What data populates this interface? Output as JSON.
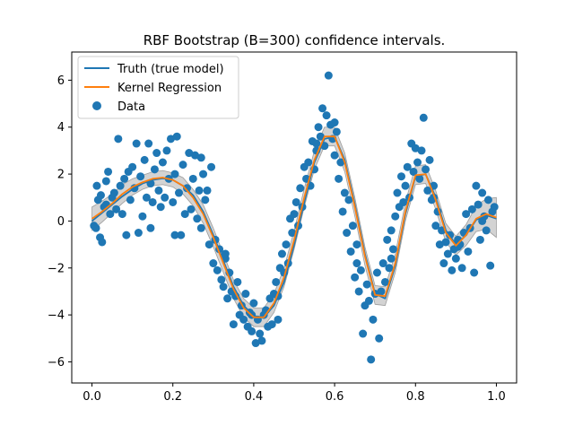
{
  "chart_data": {
    "type": "line",
    "title": "RBF Bootstrap (B=300) confidence intervals.",
    "xlabel": "",
    "ylabel": "",
    "xlim": [
      -0.05,
      1.05
    ],
    "ylim": [
      -6.9,
      7.2
    ],
    "xticks": [
      0.0,
      0.2,
      0.4,
      0.6,
      0.8,
      1.0
    ],
    "xtick_labels": [
      "0.0",
      "0.2",
      "0.4",
      "0.6",
      "0.8",
      "1.0"
    ],
    "yticks": [
      -6,
      -4,
      -2,
      0,
      2,
      4,
      6
    ],
    "ytick_labels": [
      "−6",
      "−4",
      "−2",
      "0",
      "2",
      "4",
      "6"
    ],
    "grid": false,
    "legend_position": "top-left",
    "legend": [
      {
        "label": "Truth (true model)",
        "kind": "line",
        "color": "#1f77b4"
      },
      {
        "label": "Kernel Regression",
        "kind": "line",
        "color": "#ff7f0e"
      },
      {
        "label": "Data",
        "kind": "scatter",
        "color": "#1f77b4"
      }
    ],
    "colors": {
      "truth": "#1f77b4",
      "kernel": "#ff7f0e",
      "data": "#1f77b4",
      "band": "#808080"
    },
    "series": [
      {
        "name": "Truth (true model)",
        "kind": "line",
        "x": [
          0.0,
          0.025,
          0.05,
          0.075,
          0.1,
          0.125,
          0.15,
          0.175,
          0.2,
          0.225,
          0.25,
          0.275,
          0.3,
          0.325,
          0.35,
          0.375,
          0.4,
          0.425,
          0.45,
          0.475,
          0.5,
          0.525,
          0.55,
          0.575,
          0.6,
          0.625,
          0.65,
          0.675,
          0.7,
          0.725,
          0.75,
          0.775,
          0.8,
          0.825,
          0.85,
          0.875,
          0.9,
          0.925,
          0.95,
          0.975,
          1.0
        ],
        "y": [
          0.0,
          0.35,
          0.7,
          1.05,
          1.35,
          1.6,
          1.75,
          1.82,
          1.75,
          1.5,
          1.1,
          0.4,
          -0.6,
          -1.7,
          -2.8,
          -3.6,
          -4.05,
          -4.1,
          -3.6,
          -2.6,
          -1.0,
          0.8,
          2.5,
          3.5,
          3.6,
          2.6,
          0.7,
          -1.4,
          -3.1,
          -3.3,
          -1.9,
          0.3,
          1.9,
          2.0,
          1.0,
          -0.4,
          -1.0,
          -0.6,
          0.05,
          0.25,
          0.1
        ]
      },
      {
        "name": "Kernel Regression",
        "kind": "line",
        "x": [
          0.0,
          0.025,
          0.05,
          0.075,
          0.1,
          0.125,
          0.15,
          0.175,
          0.2,
          0.225,
          0.25,
          0.275,
          0.3,
          0.325,
          0.35,
          0.375,
          0.4,
          0.425,
          0.45,
          0.475,
          0.5,
          0.525,
          0.55,
          0.575,
          0.6,
          0.625,
          0.65,
          0.675,
          0.7,
          0.725,
          0.75,
          0.775,
          0.8,
          0.825,
          0.85,
          0.875,
          0.9,
          0.925,
          0.95,
          0.975,
          1.0
        ],
        "y": [
          0.1,
          0.4,
          0.75,
          1.15,
          1.45,
          1.65,
          1.8,
          1.85,
          1.75,
          1.5,
          1.0,
          0.3,
          -0.7,
          -1.8,
          -2.9,
          -3.7,
          -4.1,
          -4.1,
          -3.5,
          -2.4,
          -0.8,
          1.0,
          2.6,
          3.6,
          3.6,
          2.5,
          0.6,
          -1.5,
          -3.15,
          -3.2,
          -1.8,
          0.4,
          1.95,
          2.0,
          0.9,
          -0.5,
          -1.05,
          -0.6,
          0.1,
          0.3,
          0.15
        ]
      }
    ],
    "band": {
      "name": "Confidence interval",
      "x": [
        0.0,
        0.025,
        0.05,
        0.075,
        0.1,
        0.125,
        0.15,
        0.175,
        0.2,
        0.225,
        0.25,
        0.275,
        0.3,
        0.325,
        0.35,
        0.375,
        0.4,
        0.425,
        0.45,
        0.475,
        0.5,
        0.525,
        0.55,
        0.575,
        0.6,
        0.625,
        0.65,
        0.675,
        0.7,
        0.725,
        0.75,
        0.775,
        0.8,
        0.825,
        0.85,
        0.875,
        0.9,
        0.925,
        0.95,
        0.975,
        1.0
      ],
      "lower": [
        -0.4,
        -0.05,
        0.35,
        0.75,
        1.1,
        1.35,
        1.5,
        1.55,
        1.45,
        1.15,
        0.65,
        -0.1,
        -1.1,
        -2.2,
        -3.3,
        -4.1,
        -4.5,
        -4.5,
        -3.9,
        -2.8,
        -1.2,
        0.6,
        2.2,
        3.2,
        3.2,
        2.1,
        0.2,
        -1.9,
        -3.55,
        -3.6,
        -2.2,
        0.0,
        1.55,
        1.6,
        0.5,
        -0.9,
        -1.45,
        -1.05,
        -0.45,
        -0.35,
        -0.7
      ],
      "upper": [
        0.6,
        0.85,
        1.15,
        1.55,
        1.8,
        1.95,
        2.1,
        2.15,
        2.05,
        1.85,
        1.35,
        0.7,
        -0.3,
        -1.4,
        -2.5,
        -3.3,
        -3.7,
        -3.7,
        -3.1,
        -2.0,
        -0.4,
        1.4,
        3.0,
        4.0,
        4.0,
        2.9,
        1.0,
        -1.1,
        -2.75,
        -2.8,
        -1.4,
        0.8,
        2.35,
        2.4,
        1.3,
        -0.1,
        -0.65,
        -0.15,
        0.65,
        0.95,
        1.0
      ]
    },
    "scatter": {
      "name": "Data",
      "points": [
        [
          0.005,
          -0.2
        ],
        [
          0.01,
          -0.3
        ],
        [
          0.012,
          1.5
        ],
        [
          0.015,
          0.9
        ],
        [
          0.02,
          -0.7
        ],
        [
          0.022,
          1.1
        ],
        [
          0.025,
          -0.9
        ],
        [
          0.03,
          0.6
        ],
        [
          0.035,
          1.7
        ],
        [
          0.04,
          2.1
        ],
        [
          0.045,
          0.3
        ],
        [
          0.05,
          1.0
        ],
        [
          0.055,
          1.2
        ],
        [
          0.06,
          0.5
        ],
        [
          0.065,
          3.5
        ],
        [
          0.07,
          1.5
        ],
        [
          0.075,
          0.3
        ],
        [
          0.08,
          1.8
        ],
        [
          0.085,
          -0.6
        ],
        [
          0.09,
          2.1
        ],
        [
          0.095,
          0.9
        ],
        [
          0.1,
          2.3
        ],
        [
          0.105,
          1.4
        ],
        [
          0.11,
          3.3
        ],
        [
          0.115,
          -0.5
        ],
        [
          0.12,
          1.9
        ],
        [
          0.125,
          0.2
        ],
        [
          0.13,
          2.6
        ],
        [
          0.135,
          1.0
        ],
        [
          0.14,
          3.3
        ],
        [
          0.145,
          1.6
        ],
        [
          0.15,
          0.8
        ],
        [
          0.155,
          2.2
        ],
        [
          0.16,
          2.9
        ],
        [
          0.165,
          1.3
        ],
        [
          0.17,
          0.6
        ],
        [
          0.175,
          2.5
        ],
        [
          0.18,
          1.0
        ],
        [
          0.185,
          3.0
        ],
        [
          0.19,
          1.8
        ],
        [
          0.195,
          3.5
        ],
        [
          0.2,
          0.8
        ],
        [
          0.205,
          2.0
        ],
        [
          0.21,
          3.6
        ],
        [
          0.215,
          1.2
        ],
        [
          0.22,
          -0.6
        ],
        [
          0.225,
          2.4
        ],
        [
          0.23,
          0.3
        ],
        [
          0.235,
          1.4
        ],
        [
          0.24,
          2.9
        ],
        [
          0.245,
          0.5
        ],
        [
          0.25,
          1.8
        ],
        [
          0.255,
          2.8
        ],
        [
          0.26,
          0.1
        ],
        [
          0.265,
          1.3
        ],
        [
          0.27,
          -0.3
        ],
        [
          0.275,
          2.0
        ],
        [
          0.28,
          0.9
        ],
        [
          0.285,
          1.3
        ],
        [
          0.29,
          -1.0
        ],
        [
          0.295,
          2.3
        ],
        [
          0.3,
          -1.8
        ],
        [
          0.305,
          -0.8
        ],
        [
          0.31,
          -2.1
        ],
        [
          0.315,
          -1.2
        ],
        [
          0.32,
          -2.5
        ],
        [
          0.325,
          -2.8
        ],
        [
          0.33,
          -1.6
        ],
        [
          0.335,
          -3.3
        ],
        [
          0.34,
          -2.2
        ],
        [
          0.345,
          -3.0
        ],
        [
          0.35,
          -4.4
        ],
        [
          0.355,
          -3.2
        ],
        [
          0.36,
          -2.6
        ],
        [
          0.365,
          -4.0
        ],
        [
          0.37,
          -3.6
        ],
        [
          0.375,
          -4.2
        ],
        [
          0.38,
          -3.1
        ],
        [
          0.385,
          -4.5
        ],
        [
          0.39,
          -3.9
        ],
        [
          0.395,
          -4.7
        ],
        [
          0.4,
          -3.5
        ],
        [
          0.405,
          -5.2
        ],
        [
          0.41,
          -4.2
        ],
        [
          0.415,
          -4.8
        ],
        [
          0.42,
          -5.1
        ],
        [
          0.425,
          -4.0
        ],
        [
          0.43,
          -3.8
        ],
        [
          0.435,
          -4.5
        ],
        [
          0.44,
          -3.3
        ],
        [
          0.445,
          -4.4
        ],
        [
          0.45,
          -3.1
        ],
        [
          0.455,
          -2.6
        ],
        [
          0.46,
          -3.2
        ],
        [
          0.465,
          -2.0
        ],
        [
          0.47,
          -1.4
        ],
        [
          0.475,
          -2.2
        ],
        [
          0.48,
          -1.0
        ],
        [
          0.485,
          -1.8
        ],
        [
          0.49,
          0.1
        ],
        [
          0.495,
          -0.5
        ],
        [
          0.5,
          0.3
        ],
        [
          0.505,
          0.8
        ],
        [
          0.51,
          -0.2
        ],
        [
          0.515,
          1.4
        ],
        [
          0.52,
          0.6
        ],
        [
          0.525,
          2.3
        ],
        [
          0.53,
          1.8
        ],
        [
          0.535,
          2.5
        ],
        [
          0.54,
          1.5
        ],
        [
          0.545,
          3.4
        ],
        [
          0.55,
          2.2
        ],
        [
          0.555,
          3.0
        ],
        [
          0.56,
          4.0
        ],
        [
          0.565,
          3.6
        ],
        [
          0.57,
          4.8
        ],
        [
          0.575,
          3.2
        ],
        [
          0.58,
          4.5
        ],
        [
          0.585,
          6.2
        ],
        [
          0.59,
          4.1
        ],
        [
          0.595,
          3.5
        ],
        [
          0.6,
          2.8
        ],
        [
          0.605,
          3.8
        ],
        [
          0.61,
          1.8
        ],
        [
          0.615,
          2.5
        ],
        [
          0.62,
          0.4
        ],
        [
          0.625,
          1.2
        ],
        [
          0.63,
          -0.5
        ],
        [
          0.635,
          0.9
        ],
        [
          0.64,
          -1.3
        ],
        [
          0.645,
          -0.2
        ],
        [
          0.65,
          -2.4
        ],
        [
          0.655,
          -1.0
        ],
        [
          0.66,
          -3.0
        ],
        [
          0.665,
          -2.1
        ],
        [
          0.67,
          -4.8
        ],
        [
          0.675,
          -3.6
        ],
        [
          0.68,
          -2.7
        ],
        [
          0.685,
          -3.4
        ],
        [
          0.69,
          -5.9
        ],
        [
          0.695,
          -4.2
        ],
        [
          0.7,
          -3.1
        ],
        [
          0.705,
          -2.2
        ],
        [
          0.71,
          -5.0
        ],
        [
          0.715,
          -3.0
        ],
        [
          0.72,
          -1.8
        ],
        [
          0.725,
          -2.6
        ],
        [
          0.73,
          -0.8
        ],
        [
          0.735,
          -2.0
        ],
        [
          0.74,
          -0.4
        ],
        [
          0.745,
          -1.2
        ],
        [
          0.75,
          0.2
        ],
        [
          0.755,
          1.2
        ],
        [
          0.76,
          0.6
        ],
        [
          0.765,
          1.9
        ],
        [
          0.77,
          0.8
        ],
        [
          0.775,
          1.5
        ],
        [
          0.78,
          2.3
        ],
        [
          0.785,
          1.0
        ],
        [
          0.79,
          3.3
        ],
        [
          0.795,
          2.1
        ],
        [
          0.8,
          3.1
        ],
        [
          0.805,
          2.5
        ],
        [
          0.81,
          1.8
        ],
        [
          0.815,
          3.0
        ],
        [
          0.82,
          4.4
        ],
        [
          0.825,
          2.2
        ],
        [
          0.83,
          1.3
        ],
        [
          0.835,
          2.6
        ],
        [
          0.84,
          0.9
        ],
        [
          0.845,
          1.5
        ],
        [
          0.85,
          -0.2
        ],
        [
          0.855,
          0.4
        ],
        [
          0.86,
          -1.0
        ],
        [
          0.865,
          -0.4
        ],
        [
          0.87,
          -1.8
        ],
        [
          0.875,
          -0.9
        ],
        [
          0.88,
          -1.4
        ],
        [
          0.885,
          -0.6
        ],
        [
          0.89,
          -2.1
        ],
        [
          0.895,
          -1.2
        ],
        [
          0.9,
          -1.6
        ],
        [
          0.905,
          -0.8
        ],
        [
          0.91,
          -1.0
        ],
        [
          0.915,
          -2.0
        ],
        [
          0.92,
          -0.5
        ],
        [
          0.925,
          0.3
        ],
        [
          0.93,
          -1.3
        ],
        [
          0.935,
          -0.3
        ],
        [
          0.94,
          0.5
        ],
        [
          0.945,
          -2.2
        ],
        [
          0.95,
          1.5
        ],
        [
          0.955,
          0.7
        ],
        [
          0.96,
          -0.8
        ],
        [
          0.965,
          1.2
        ],
        [
          0.97,
          0.2
        ],
        [
          0.975,
          -0.4
        ],
        [
          0.98,
          0.9
        ],
        [
          0.985,
          -1.9
        ],
        [
          0.99,
          0.4
        ],
        [
          0.995,
          0.6
        ],
        [
          0.035,
          0.7
        ],
        [
          0.145,
          -0.3
        ],
        [
          0.205,
          -0.6
        ],
        [
          0.27,
          2.7
        ],
        [
          0.33,
          -1.4
        ],
        [
          0.395,
          -4.0
        ],
        [
          0.46,
          -4.2
        ],
        [
          0.555,
          3.3
        ],
        [
          0.6,
          4.2
        ],
        [
          0.655,
          -1.8
        ],
        [
          0.74,
          -1.6
        ],
        [
          0.845,
          1.0
        ],
        [
          0.905,
          -1.1
        ],
        [
          0.965,
          0.0
        ]
      ]
    }
  }
}
